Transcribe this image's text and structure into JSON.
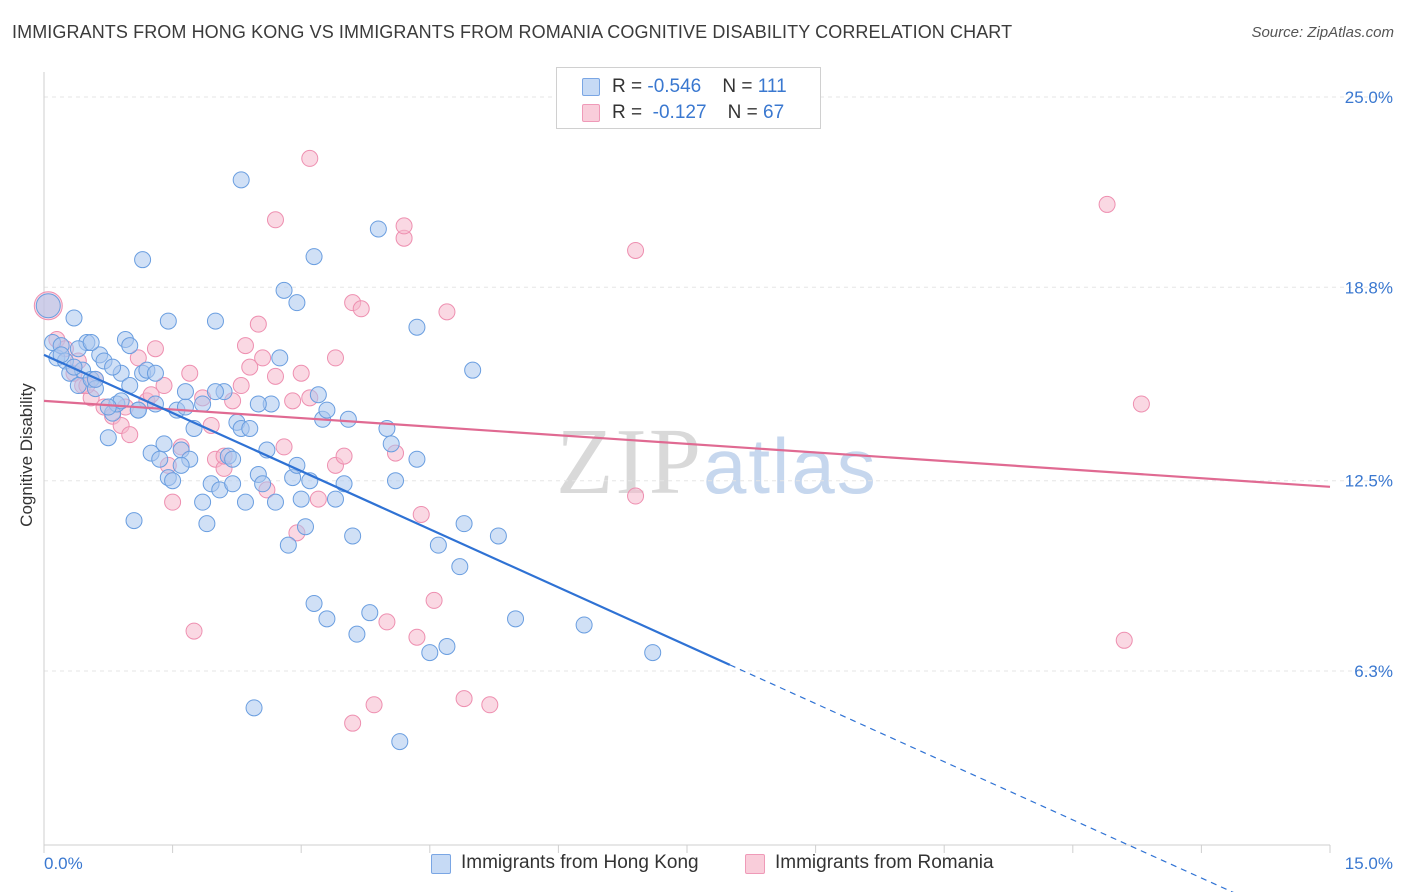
{
  "title": "IMMIGRANTS FROM HONG KONG VS IMMIGRANTS FROM ROMANIA COGNITIVE DISABILITY CORRELATION CHART",
  "source": "Source: ZipAtlas.com",
  "watermark": {
    "zip": "ZIP",
    "atlas": "atlas"
  },
  "legend_top": {
    "hk": {
      "r_label": "R = ",
      "r_value": "-0.546",
      "n_label": "N = ",
      "n_value": "111"
    },
    "ro": {
      "r_label": "R = ",
      "r_value": " -0.127",
      "n_label": "N = ",
      "n_value": "67"
    }
  },
  "legend_bottom": {
    "hk": "Immigrants from Hong Kong",
    "ro": "Immigrants from Romania"
  },
  "colors": {
    "hk_fill": "#a9c6ee",
    "hk_stroke": "#6a9ee0",
    "hk_line": "#2f72d4",
    "ro_fill": "#f6b8cc",
    "ro_stroke": "#ee8fb0",
    "ro_line": "#e06a92",
    "tick_text": "#3a78d0",
    "grid": "#e6e6e6"
  },
  "chart_data": {
    "type": "scatter",
    "title": "IMMIGRANTS FROM HONG KONG VS IMMIGRANTS FROM ROMANIA COGNITIVE DISABILITY CORRELATION CHART",
    "xlabel": "",
    "ylabel": "Cognitive Disability",
    "xlim": [
      0,
      15
    ],
    "ylim": [
      0,
      26
    ],
    "x_ticks": [
      {
        "value": 0,
        "label": "0.0%"
      },
      {
        "value": 15,
        "label": "15.0%"
      }
    ],
    "y_ticks": [
      {
        "value": 25.0,
        "label": "25.0%"
      },
      {
        "value": 18.8,
        "label": "18.8%"
      },
      {
        "value": 12.5,
        "label": "12.5%"
      },
      {
        "value": 6.3,
        "label": "6.3%"
      }
    ],
    "grid": true,
    "legend_position": "top-center",
    "series": [
      {
        "name": "Immigrants from Hong Kong",
        "trend": {
          "x0": 0,
          "y0": 16.6,
          "x1": 8.0,
          "y1": 6.5,
          "dashed_to_x": 15.0
        },
        "points": [
          [
            0.05,
            18.2
          ],
          [
            0.1,
            17.0
          ],
          [
            0.15,
            16.5
          ],
          [
            0.2,
            16.9
          ],
          [
            0.25,
            16.4
          ],
          [
            0.3,
            16.0
          ],
          [
            0.35,
            17.8
          ],
          [
            0.4,
            15.6
          ],
          [
            0.45,
            16.1
          ],
          [
            0.5,
            17.0
          ],
          [
            0.55,
            15.8
          ],
          [
            0.6,
            15.5
          ],
          [
            0.65,
            16.6
          ],
          [
            0.7,
            16.4
          ],
          [
            0.75,
            13.9
          ],
          [
            0.8,
            14.7
          ],
          [
            0.85,
            15.0
          ],
          [
            0.9,
            16.0
          ],
          [
            0.95,
            17.1
          ],
          [
            1.0,
            16.9
          ],
          [
            1.05,
            11.2
          ],
          [
            1.1,
            14.8
          ],
          [
            1.15,
            16.0
          ],
          [
            1.2,
            16.1
          ],
          [
            1.15,
            19.7
          ],
          [
            1.25,
            13.4
          ],
          [
            1.3,
            15.0
          ],
          [
            1.35,
            13.2
          ],
          [
            1.4,
            13.7
          ],
          [
            1.45,
            12.6
          ],
          [
            1.5,
            12.5
          ],
          [
            1.55,
            14.8
          ],
          [
            1.6,
            13.5
          ],
          [
            1.65,
            14.9
          ],
          [
            1.7,
            13.2
          ],
          [
            1.75,
            14.2
          ],
          [
            1.65,
            15.4
          ],
          [
            1.85,
            11.8
          ],
          [
            1.9,
            11.1
          ],
          [
            1.95,
            12.4
          ],
          [
            2.0,
            17.7
          ],
          [
            2.05,
            12.2
          ],
          [
            2.1,
            15.4
          ],
          [
            2.15,
            13.3
          ],
          [
            2.2,
            13.2
          ],
          [
            2.25,
            14.4
          ],
          [
            2.3,
            14.2
          ],
          [
            2.35,
            11.8
          ],
          [
            2.4,
            14.2
          ],
          [
            2.45,
            5.1
          ],
          [
            2.5,
            12.7
          ],
          [
            2.55,
            12.4
          ],
          [
            2.6,
            13.5
          ],
          [
            2.65,
            15.0
          ],
          [
            2.7,
            11.8
          ],
          [
            2.75,
            16.5
          ],
          [
            2.8,
            18.7
          ],
          [
            2.85,
            10.4
          ],
          [
            2.9,
            12.6
          ],
          [
            2.95,
            18.3
          ],
          [
            3.0,
            11.9
          ],
          [
            3.05,
            11.0
          ],
          [
            3.1,
            12.5
          ],
          [
            3.15,
            8.5
          ],
          [
            3.2,
            15.3
          ],
          [
            3.25,
            14.5
          ],
          [
            3.3,
            8.0
          ],
          [
            3.4,
            11.9
          ],
          [
            3.5,
            12.4
          ],
          [
            3.55,
            14.5
          ],
          [
            3.6,
            10.7
          ],
          [
            3.65,
            7.5
          ],
          [
            3.8,
            8.2
          ],
          [
            3.9,
            20.7
          ],
          [
            4.0,
            14.2
          ],
          [
            4.05,
            13.7
          ],
          [
            4.1,
            12.5
          ],
          [
            4.15,
            4.0
          ],
          [
            4.35,
            13.2
          ],
          [
            4.5,
            6.9
          ],
          [
            4.6,
            10.4
          ],
          [
            4.7,
            7.1
          ],
          [
            4.85,
            9.7
          ],
          [
            4.9,
            11.1
          ],
          [
            5.0,
            16.1
          ],
          [
            5.3,
            10.7
          ],
          [
            5.5,
            8.0
          ],
          [
            6.3,
            7.8
          ],
          [
            7.1,
            6.9
          ],
          [
            2.2,
            12.4
          ],
          [
            1.45,
            17.7
          ],
          [
            2.3,
            22.3
          ],
          [
            3.15,
            19.8
          ],
          [
            4.35,
            17.5
          ],
          [
            0.8,
            16.2
          ],
          [
            0.4,
            16.8
          ],
          [
            0.55,
            17.0
          ],
          [
            1.0,
            15.6
          ],
          [
            1.3,
            16.0
          ],
          [
            0.2,
            16.6
          ],
          [
            0.35,
            16.2
          ],
          [
            0.9,
            15.1
          ],
          [
            2.0,
            15.4
          ],
          [
            3.3,
            14.8
          ],
          [
            1.85,
            15.0
          ],
          [
            1.1,
            14.8
          ],
          [
            2.5,
            15.0
          ],
          [
            0.6,
            15.8
          ],
          [
            1.6,
            13.0
          ],
          [
            2.95,
            13.0
          ],
          [
            0.75,
            14.9
          ]
        ]
      },
      {
        "name": "Immigrants from Romania",
        "trend": {
          "x0": 0,
          "y0": 15.1,
          "x1": 15.0,
          "y1": 12.3
        },
        "points": [
          [
            0.05,
            18.2
          ],
          [
            0.15,
            17.1
          ],
          [
            0.25,
            16.8
          ],
          [
            0.35,
            16.0
          ],
          [
            0.45,
            15.6
          ],
          [
            0.55,
            15.2
          ],
          [
            0.6,
            15.8
          ],
          [
            0.7,
            14.9
          ],
          [
            0.8,
            14.6
          ],
          [
            0.9,
            14.3
          ],
          [
            1.0,
            14.0
          ],
          [
            1.1,
            16.5
          ],
          [
            1.2,
            15.1
          ],
          [
            1.3,
            16.8
          ],
          [
            1.4,
            15.6
          ],
          [
            1.45,
            13.0
          ],
          [
            1.5,
            11.8
          ],
          [
            1.6,
            13.6
          ],
          [
            1.7,
            16.0
          ],
          [
            1.75,
            7.6
          ],
          [
            1.85,
            15.2
          ],
          [
            1.95,
            14.3
          ],
          [
            2.0,
            13.2
          ],
          [
            2.1,
            12.9
          ],
          [
            2.2,
            15.1
          ],
          [
            2.3,
            15.6
          ],
          [
            2.35,
            16.9
          ],
          [
            2.4,
            16.2
          ],
          [
            2.5,
            17.6
          ],
          [
            2.6,
            12.2
          ],
          [
            2.7,
            15.9
          ],
          [
            2.8,
            13.6
          ],
          [
            2.9,
            15.1
          ],
          [
            2.95,
            10.8
          ],
          [
            3.0,
            16.0
          ],
          [
            3.1,
            15.2
          ],
          [
            3.2,
            11.9
          ],
          [
            3.4,
            13.0
          ],
          [
            3.5,
            13.3
          ],
          [
            3.6,
            18.3
          ],
          [
            3.7,
            18.1
          ],
          [
            3.85,
            5.2
          ],
          [
            4.0,
            7.9
          ],
          [
            4.1,
            13.4
          ],
          [
            4.2,
            20.4
          ],
          [
            4.35,
            7.4
          ],
          [
            4.4,
            11.4
          ],
          [
            4.55,
            8.6
          ],
          [
            4.7,
            18.0
          ],
          [
            4.9,
            5.4
          ],
          [
            5.2,
            5.2
          ],
          [
            3.6,
            4.6
          ],
          [
            6.9,
            12.0
          ],
          [
            12.4,
            21.5
          ],
          [
            12.8,
            15.0
          ],
          [
            12.6,
            7.3
          ],
          [
            6.9,
            20.0
          ],
          [
            2.7,
            21.0
          ],
          [
            3.1,
            23.0
          ],
          [
            4.2,
            20.8
          ],
          [
            0.5,
            15.6
          ],
          [
            0.95,
            14.9
          ],
          [
            1.25,
            15.3
          ],
          [
            2.1,
            13.3
          ],
          [
            2.55,
            16.5
          ],
          [
            3.4,
            16.5
          ],
          [
            0.4,
            16.4
          ]
        ]
      }
    ]
  }
}
